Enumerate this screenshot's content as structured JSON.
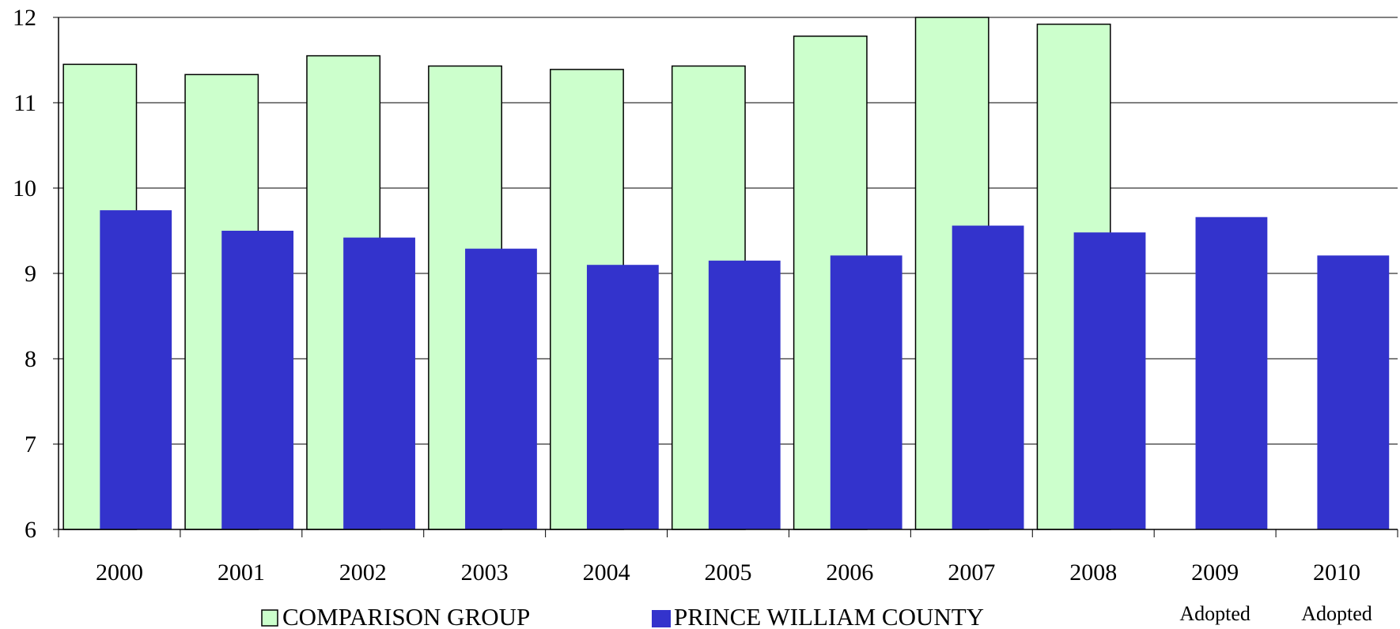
{
  "chart_data": {
    "type": "bar",
    "title": "",
    "xlabel": "",
    "ylabel": "",
    "ylim": [
      6,
      12
    ],
    "yticks": [
      6,
      7,
      8,
      9,
      10,
      11,
      12
    ],
    "grid": true,
    "legend_position": "bottom-left",
    "categories": [
      "2000",
      "2001",
      "2002",
      "2003",
      "2004",
      "2005",
      "2006",
      "2007",
      "2008",
      "2009",
      "2010"
    ],
    "category_sublabels": [
      "",
      "",
      "",
      "",
      "",
      "",
      "",
      "",
      "",
      "Adopted",
      "Adopted"
    ],
    "series": [
      {
        "name": "COMPARISON GROUP",
        "color": "#ccffcc",
        "stroke": "#000000",
        "values": [
          11.45,
          11.33,
          11.55,
          11.43,
          11.39,
          11.43,
          11.78,
          12.0,
          11.92,
          null,
          null
        ]
      },
      {
        "name": "PRINCE WILLIAM COUNTY",
        "color": "#3333cc",
        "stroke": "none",
        "values": [
          9.74,
          9.5,
          9.42,
          9.29,
          9.1,
          9.15,
          9.21,
          9.56,
          9.48,
          9.66,
          9.21
        ]
      }
    ]
  }
}
